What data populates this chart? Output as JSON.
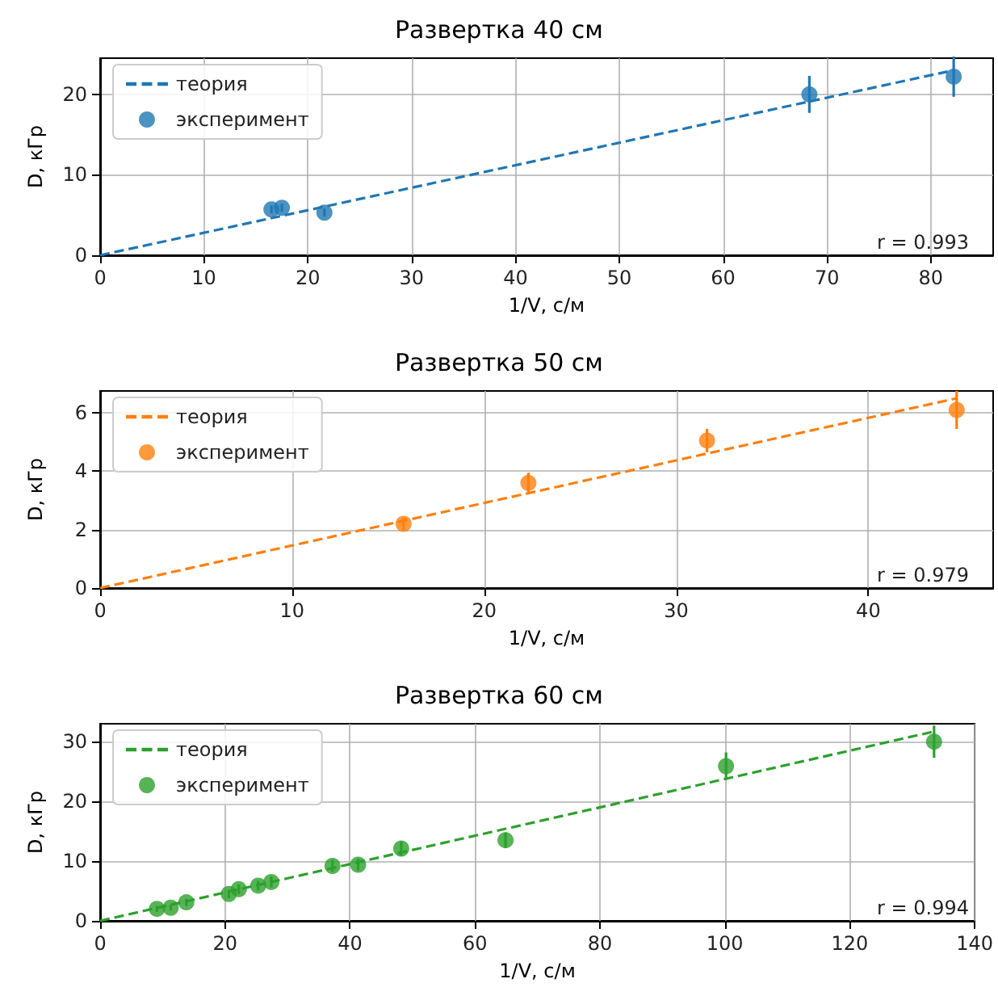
{
  "chart_data": [
    {
      "type": "scatter",
      "title": "Развертка 40 см",
      "xlabel": "1/V, с/м",
      "ylabel": "D, кГр",
      "annotations": [
        "r = 0.993"
      ],
      "xlim": [
        0,
        86
      ],
      "ylim": [
        0,
        24.5
      ],
      "xticks": [
        0,
        10,
        20,
        30,
        40,
        50,
        60,
        70,
        80
      ],
      "yticks": [
        0,
        10,
        20
      ],
      "grid": true,
      "legend": "top left",
      "series": [
        {
          "name": "теория",
          "type": "line",
          "color": "#1f77b4",
          "line_style": "dashed",
          "marker": "none",
          "x": [
            0,
            82.2
          ],
          "values": [
            0,
            23.0
          ]
        },
        {
          "name": "эксперимент",
          "type": "scatter",
          "color": "#1f77b4",
          "marker": "circle",
          "x": [
            16.5,
            17.5,
            21.6,
            68.3,
            82.2
          ],
          "values": [
            5.7,
            5.9,
            5.3,
            20.0,
            22.2
          ],
          "errors": [
            0.5,
            0.5,
            0.5,
            2.3,
            2.5
          ]
        }
      ]
    },
    {
      "type": "scatter",
      "title": "Развертка 50 см",
      "xlabel": "1/V, с/м",
      "ylabel": "D, кГр",
      "annotations": [
        "r = 0.979"
      ],
      "xlim": [
        0,
        46.5
      ],
      "ylim": [
        0,
        6.75
      ],
      "xticks": [
        0,
        10,
        20,
        30,
        40
      ],
      "yticks": [
        0,
        2,
        4,
        6
      ],
      "grid": true,
      "legend": "top left",
      "series": [
        {
          "name": "теория",
          "type": "line",
          "color": "#ff7f0e",
          "line_style": "dashed",
          "marker": "none",
          "x": [
            0,
            44.6
          ],
          "values": [
            0,
            6.5
          ]
        },
        {
          "name": "эксперимент",
          "type": "scatter",
          "color": "#ff7f0e",
          "marker": "circle",
          "x": [
            15.8,
            22.3,
            31.6,
            44.6
          ],
          "values": [
            2.2,
            3.6,
            5.05,
            6.1
          ],
          "errors": [
            0.2,
            0.35,
            0.4,
            0.65
          ]
        }
      ]
    },
    {
      "type": "scatter",
      "title": "Развертка 60 см",
      "xlabel": "1/V, с/м",
      "ylabel": "D, кГр",
      "annotations": [
        "r = 0.994"
      ],
      "xlim": [
        0,
        140
      ],
      "ylim": [
        0,
        33
      ],
      "xticks": [
        0,
        20,
        40,
        60,
        80,
        100,
        120,
        140
      ],
      "yticks": [
        0,
        10,
        20,
        30
      ],
      "grid": true,
      "legend": "top left",
      "series": [
        {
          "name": "теория",
          "type": "line",
          "color": "#2ca02c",
          "line_style": "dashed",
          "marker": "none",
          "x": [
            0,
            133.5
          ],
          "values": [
            0,
            31.7
          ]
        },
        {
          "name": "эксперимент",
          "type": "scatter",
          "color": "#2ca02c",
          "marker": "circle",
          "x": [
            9.1,
            11.3,
            13.8,
            20.6,
            22.2,
            25.3,
            27.4,
            37.2,
            41.3,
            48.2,
            64.9,
            100.2,
            133.5
          ],
          "values": [
            2.0,
            2.2,
            3.1,
            4.5,
            5.3,
            5.9,
            6.5,
            9.2,
            9.4,
            12.1,
            13.5,
            25.9,
            30.0
          ],
          "errors": [
            0.5,
            0.5,
            0.6,
            0.7,
            0.8,
            0.8,
            0.9,
            1.0,
            1.0,
            1.2,
            1.3,
            2.3,
            2.7
          ]
        }
      ]
    }
  ]
}
